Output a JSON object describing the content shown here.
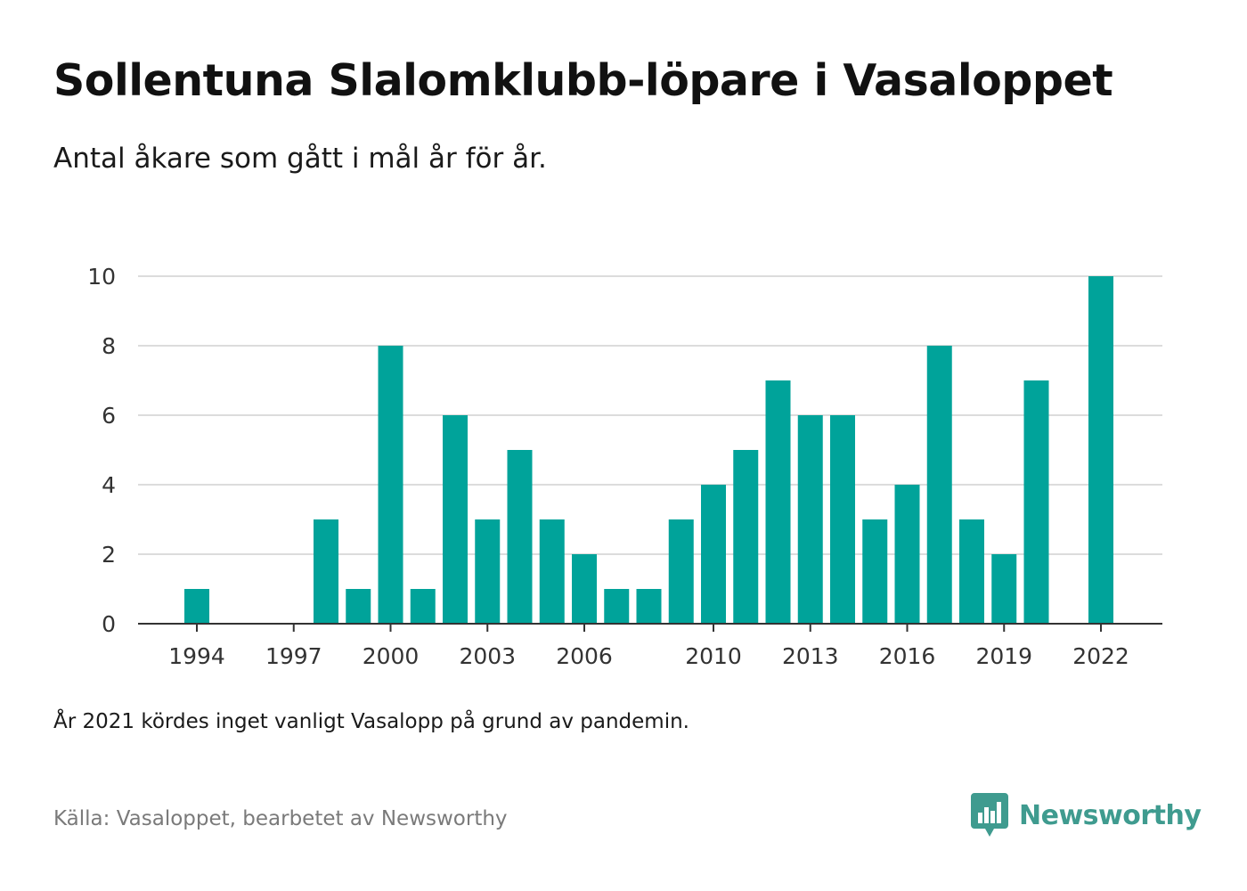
{
  "header": {
    "title": "Sollentuna Slalomklubb-löpare i Vasaloppet",
    "subtitle": "Antal åkare som gått i mål år för år."
  },
  "footer": {
    "note": "År 2021 kördes inget vanligt Vasalopp på grund av pandemin.",
    "source": "Källa: Vasaloppet, bearbetet av Newsworthy",
    "logo_text": "Newsworthy",
    "logo_icon": "bar-chart-speech-bubble-icon"
  },
  "colors": {
    "bar": "#00a39a",
    "grid": "#dcdcdc",
    "axis": "#333333",
    "logo": "#3f9b8f"
  },
  "chart_data": {
    "type": "bar",
    "categories": [
      1994,
      1995,
      1996,
      1997,
      1998,
      1999,
      2000,
      2001,
      2002,
      2003,
      2004,
      2005,
      2006,
      2007,
      2008,
      2009,
      2010,
      2011,
      2012,
      2013,
      2014,
      2015,
      2016,
      2017,
      2018,
      2019,
      2020,
      2021,
      2022
    ],
    "values": [
      1,
      0,
      0,
      0,
      3,
      1,
      8,
      1,
      6,
      3,
      5,
      3,
      2,
      1,
      1,
      3,
      4,
      5,
      7,
      6,
      6,
      3,
      4,
      8,
      3,
      2,
      7,
      null,
      10
    ],
    "xlim": [
      1993,
      2023
    ],
    "ylim": [
      0,
      10
    ],
    "yticks": [
      0,
      2,
      4,
      6,
      8,
      10
    ],
    "xticks": [
      1994,
      1997,
      2000,
      2003,
      2006,
      2010,
      2013,
      2016,
      2019,
      2022
    ],
    "grid": true,
    "legend": "none"
  }
}
